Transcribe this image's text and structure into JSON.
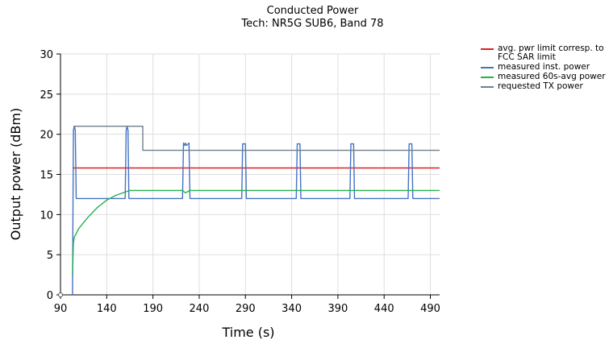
{
  "chart_data": {
    "type": "line",
    "title": "Conducted Power",
    "subtitle": "Tech: NR5G SUB6, Band 78",
    "xlabel": "Time (s)",
    "ylabel": "Output power (dBm)",
    "xlim": [
      90,
      500
    ],
    "ylim": [
      0,
      30
    ],
    "x_ticks": [
      90,
      140,
      190,
      240,
      290,
      340,
      390,
      440,
      490
    ],
    "y_ticks": [
      0,
      5,
      10,
      15,
      20,
      25,
      30
    ],
    "grid": true,
    "legend_position": "right",
    "series": [
      {
        "name": "avg. pwr limit corresp. to FCC SAR limit",
        "color": "#e02020",
        "x": [
          103,
          500
        ],
        "y": [
          15.8,
          15.8
        ]
      },
      {
        "name": "measured inst. power",
        "color": "#4472c4",
        "x": [
          103,
          104,
          105,
          106,
          107,
          160,
          161,
          162,
          163,
          164,
          222,
          223,
          224,
          225,
          226,
          229,
          230,
          286,
          287,
          288,
          290,
          291,
          345,
          346,
          347,
          349,
          350,
          403,
          404,
          405,
          407,
          408,
          466,
          467,
          468,
          470,
          471,
          500
        ],
        "y": [
          0,
          20.5,
          21,
          20.5,
          12,
          12,
          20.5,
          21,
          20.5,
          12,
          12,
          18.9,
          18.6,
          18.9,
          18.6,
          18.9,
          12,
          12,
          18.8,
          18.8,
          18.8,
          12,
          12,
          18.8,
          18.8,
          18.8,
          12,
          12,
          18.8,
          18.8,
          18.8,
          12,
          12,
          18.8,
          18.8,
          18.8,
          12,
          12
        ]
      },
      {
        "name": "measured 60s-avg power",
        "color": "#22b24c",
        "x": [
          103,
          104,
          105,
          110,
          120,
          130,
          140,
          150,
          160,
          165,
          175,
          222,
          225,
          230,
          260,
          300,
          500
        ],
        "y": [
          2.5,
          6.5,
          7.2,
          8.3,
          9.7,
          10.9,
          11.8,
          12.4,
          12.8,
          13,
          13,
          13,
          12.7,
          13,
          13,
          13,
          13
        ]
      },
      {
        "name": "requested TX power",
        "color": "#6f7f8c",
        "x": [
          104,
          179,
          179,
          500
        ],
        "y": [
          21,
          21,
          18,
          18
        ]
      }
    ]
  }
}
